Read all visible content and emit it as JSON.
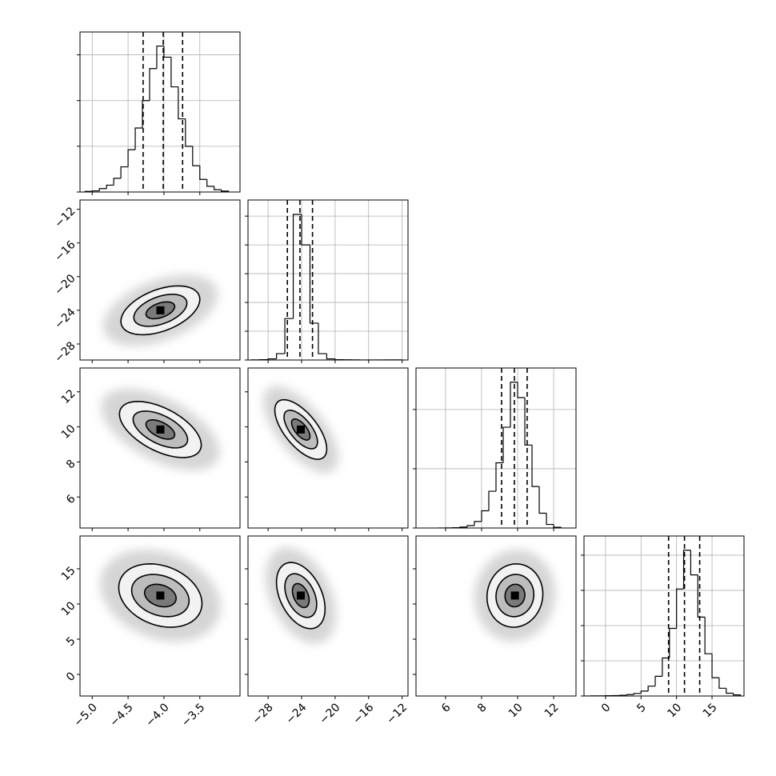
{
  "chart_data": [
    {
      "type": "histogram",
      "bins": [
        -5.1,
        -5.0,
        -4.9,
        -4.8,
        -4.7,
        -4.6,
        -4.5,
        -4.4,
        -4.3,
        -4.2,
        -4.1,
        -4.0,
        -3.9,
        -3.8,
        -3.7,
        -3.6,
        -3.5,
        -3.4,
        -3.3,
        -3.2,
        -3.1
      ],
      "values": [
        5,
        10,
        30,
        60,
        120,
        220,
        370,
        560,
        800,
        1080,
        1277,
        1180,
        920,
        640,
        400,
        230,
        110,
        50,
        20,
        8
      ],
      "quantiles": [
        -4.29,
        -4.01,
        -3.74
      ],
      "xlim": [
        -5.17,
        -2.94
      ],
      "xticks": [
        -5.0,
        -4.5,
        -4.0,
        -3.5
      ],
      "ylim": [
        0,
        1400
      ],
      "yticks": [
        0,
        400,
        800,
        1200
      ],
      "grid": true,
      "color": "#000000"
    },
    {
      "type": "contour",
      "center": {
        "x": -4.05,
        "y": -24.0
      },
      "rho": 0.45,
      "contours": [
        {
          "rx": 0.55,
          "ry": 2.9
        },
        {
          "rx": 0.37,
          "ry": 1.9
        },
        {
          "rx": 0.2,
          "ry": 1.0
        }
      ],
      "xlim": [
        -5.17,
        -2.94
      ],
      "xticks": [
        -5.0,
        -4.5,
        -4.0,
        -3.5
      ],
      "ylim": [
        -29.9,
        -10.9
      ],
      "yticks": [
        {
          "value": -28,
          "label": "−28"
        },
        {
          "value": -24,
          "label": "−24"
        },
        {
          "value": -20,
          "label": "−20"
        },
        {
          "value": -16,
          "label": "−16"
        },
        {
          "value": -12,
          "label": "−12"
        }
      ],
      "color": "#000000"
    },
    {
      "type": "histogram",
      "bins": [
        -30,
        -29,
        -28,
        -27,
        -26,
        -25,
        -24,
        -23,
        -22,
        -21,
        -20,
        -19,
        -18,
        -17,
        -16,
        -15,
        -14,
        -13,
        -12
      ],
      "values": [
        2,
        5,
        20,
        110,
        720,
        2530,
        2000,
        640,
        110,
        20,
        6,
        3,
        2,
        1,
        1,
        1,
        2,
        2
      ],
      "quantiles": [
        -25.7,
        -24.2,
        -22.7
      ],
      "xlim": [
        -30.4,
        -11.3
      ],
      "xticks": [
        -28,
        -24,
        -20,
        -16,
        -12
      ],
      "ylim": [
        0,
        2780
      ],
      "yticks": [
        0,
        500,
        1000,
        1500,
        2000,
        2500
      ],
      "grid": true,
      "color": "#000000"
    },
    {
      "type": "contour",
      "center": {
        "x": -4.05,
        "y": 9.85
      },
      "rho": -0.55,
      "contours": [
        {
          "rx": 0.57,
          "ry": 1.6
        },
        {
          "rx": 0.38,
          "ry": 1.05
        },
        {
          "rx": 0.2,
          "ry": 0.55
        }
      ],
      "xlim": [
        -5.17,
        -2.94
      ],
      "xticks": [
        -5.0,
        -4.5,
        -4.0,
        -3.5
      ],
      "ylim": [
        4.23,
        13.36
      ],
      "yticks": [
        6,
        8,
        10,
        12
      ],
      "color": "#000000"
    },
    {
      "type": "contour",
      "center": {
        "x": -24.1,
        "y": 9.85
      },
      "rho": -0.65,
      "contours": [
        {
          "rx": 3.1,
          "ry": 1.7
        },
        {
          "rx": 2.0,
          "ry": 1.1
        },
        {
          "rx": 1.1,
          "ry": 0.6
        }
      ],
      "xlim": [
        -30.4,
        -11.3
      ],
      "xticks": [
        -28,
        -24,
        -20,
        -16,
        -12
      ],
      "ylim": [
        4.23,
        13.36
      ],
      "yticks": [
        6,
        8,
        10,
        12
      ],
      "color": "#000000"
    },
    {
      "type": "histogram",
      "bins": [
        5.6,
        6.0,
        6.4,
        6.8,
        7.2,
        7.6,
        8.0,
        8.4,
        8.8,
        9.2,
        9.6,
        10.0,
        10.4,
        10.8,
        11.2,
        11.6,
        12.0,
        12.4
      ],
      "values": [
        1,
        2,
        5,
        15,
        40,
        110,
        290,
        620,
        1100,
        1700,
        2460,
        2200,
        1400,
        700,
        250,
        60,
        12
      ],
      "quantiles": [
        9.11,
        9.82,
        10.53
      ],
      "xlim": [
        4.36,
        13.24
      ],
      "xticks": [
        6,
        8,
        10,
        12
      ],
      "ylim": [
        0,
        2700
      ],
      "yticks": [
        0,
        1000,
        2000
      ],
      "grid": true,
      "color": "#000000"
    },
    {
      "type": "contour",
      "center": {
        "x": -4.05,
        "y": 11.2
      },
      "rho": -0.25,
      "contours": [
        {
          "rx": 0.58,
          "ry": 4.5
        },
        {
          "rx": 0.4,
          "ry": 3.0
        },
        {
          "rx": 0.22,
          "ry": 1.6
        }
      ],
      "xlim": [
        -5.17,
        -2.94
      ],
      "xticks": [
        {
          "value": -5.0,
          "label": "−5.0"
        },
        {
          "value": -4.5,
          "label": "−4.5"
        },
        {
          "value": -4.0,
          "label": "−4.0"
        },
        {
          "value": -3.5,
          "label": "−3.5"
        }
      ],
      "ylim": [
        -3.07,
        19.66
      ],
      "yticks": [
        0,
        5,
        10,
        15
      ],
      "color": "#000000"
    },
    {
      "type": "contour",
      "center": {
        "x": -24.1,
        "y": 11.2
      },
      "rho": -0.4,
      "contours": [
        {
          "rx": 2.9,
          "ry": 4.7
        },
        {
          "rx": 1.9,
          "ry": 3.1
        },
        {
          "rx": 1.0,
          "ry": 1.7
        }
      ],
      "xlim": [
        -30.4,
        -11.3
      ],
      "xticks": [
        {
          "value": -28,
          "label": "−28"
        },
        {
          "value": -24,
          "label": "−24"
        },
        {
          "value": -20,
          "label": "−20"
        },
        {
          "value": -16,
          "label": "−16"
        },
        {
          "value": -12,
          "label": "−12"
        }
      ],
      "ylim": [
        -3.07,
        19.66
      ],
      "yticks": [
        0,
        5,
        10,
        15
      ],
      "color": "#000000"
    },
    {
      "type": "contour",
      "center": {
        "x": 9.85,
        "y": 11.2
      },
      "rho": 0.05,
      "contours": [
        {
          "rx": 1.55,
          "ry": 4.5
        },
        {
          "rx": 1.05,
          "ry": 3.0
        },
        {
          "rx": 0.55,
          "ry": 1.6
        }
      ],
      "xlim": [
        4.36,
        13.24
      ],
      "xticks": [
        6,
        8,
        10,
        12
      ],
      "ylim": [
        -3.07,
        19.66
      ],
      "yticks": [
        0,
        5,
        10,
        15
      ],
      "color": "#000000"
    },
    {
      "type": "histogram",
      "bins": [
        -3,
        -2,
        -1,
        0,
        1,
        2,
        3,
        4,
        5,
        6,
        7,
        8,
        9,
        10,
        11,
        12,
        13,
        14,
        15,
        16,
        17,
        18,
        19
      ],
      "values": [
        0,
        1,
        1,
        2,
        3,
        5,
        10,
        18,
        35,
        70,
        140,
        270,
        480,
        760,
        1035,
        860,
        560,
        300,
        130,
        55,
        20,
        8
      ],
      "quantiles": [
        8.88,
        11.12,
        13.26
      ],
      "xlim": [
        -3.03,
        19.5
      ],
      "xticks": [
        0,
        5,
        10,
        15
      ],
      "ylim": [
        0,
        1136
      ],
      "yticks": [
        0,
        250,
        500,
        750,
        1000
      ],
      "grid": true,
      "color": "#000000"
    }
  ]
}
